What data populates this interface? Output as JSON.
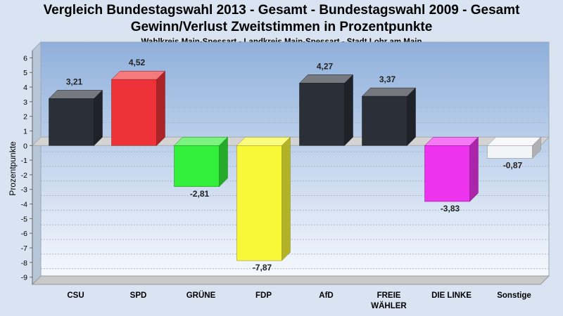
{
  "title_line1": "Vergleich Bundestagswahl 2013 - Gesamt - Bundestagswahl 2009 - Gesamt",
  "title_line2": "Gewinn/Verlust Zweitstimmen in Prozentpunkte",
  "subtitle": "Wahlkreis Main-Spessart - Landkreis Main-Spessart - Stadt Lohr am Main",
  "chart_data": {
    "type": "bar",
    "ylabel": "Prozentpunkte",
    "ylim": [
      -9.5,
      6.5
    ],
    "yticks": [
      6,
      5,
      4,
      3,
      2,
      1,
      0,
      -1,
      -2,
      -3,
      -4,
      -5,
      -6,
      -7,
      -8,
      -9
    ],
    "grid": true,
    "categories": [
      {
        "label": "CSU",
        "label2": ""
      },
      {
        "label": "SPD",
        "label2": ""
      },
      {
        "label": "GRÜNE",
        "label2": ""
      },
      {
        "label": "FDP",
        "label2": ""
      },
      {
        "label": "AfD",
        "label2": ""
      },
      {
        "label": "FREIE",
        "label2": "WÄHLER"
      },
      {
        "label": "DIE LINKE",
        "label2": ""
      },
      {
        "label": "Sonstige",
        "label2": ""
      }
    ],
    "values": [
      3.21,
      4.52,
      -2.81,
      -7.87,
      4.27,
      3.37,
      -3.83,
      -0.87
    ],
    "value_labels": [
      "3,21",
      "4,52",
      "-2,81",
      "-7,87",
      "4,27",
      "3,37",
      "-3,83",
      "-0,87"
    ],
    "colors": [
      "#2b2f38",
      "#ee3338",
      "#33ee3a",
      "#f8f838",
      "#2b2f38",
      "#2b2f38",
      "#ee33ee",
      "#f2f4f8"
    ]
  }
}
